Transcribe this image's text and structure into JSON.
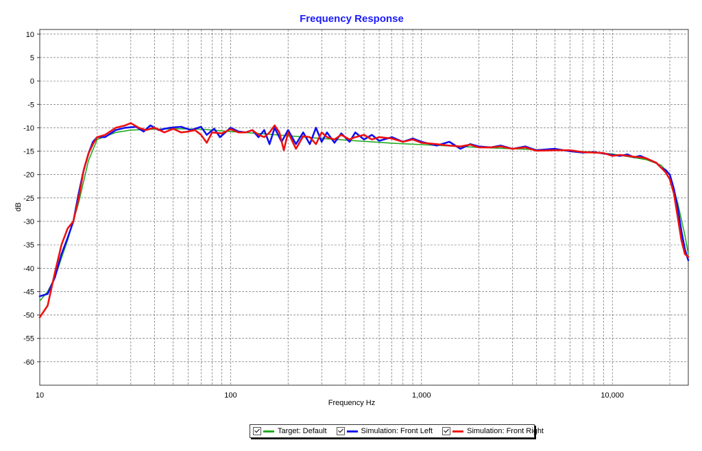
{
  "chart_data": {
    "type": "line",
    "title": "Frequency Response",
    "xlabel": "Frequency Hz",
    "ylabel": "dB",
    "x_scale": "log",
    "xlim": [
      10,
      25000
    ],
    "ylim": [
      -65,
      11
    ],
    "x_tick_labels": [
      {
        "value": 10,
        "label": "10"
      },
      {
        "value": 100,
        "label": "100"
      },
      {
        "value": 1000,
        "label": "1,000"
      },
      {
        "value": 10000,
        "label": "10,000"
      }
    ],
    "y_ticks": [
      10,
      5,
      0,
      -5,
      -10,
      -15,
      -20,
      -25,
      -30,
      -35,
      -40,
      -45,
      -50,
      -55,
      -60
    ],
    "grid": true,
    "legend_position": "bottom-center",
    "colors": {
      "title": "#1a1aff",
      "target": "#22aa22",
      "left": "#1010ee",
      "right": "#ee1010",
      "grid": "#555555"
    },
    "series": [
      {
        "name": "Target: Default",
        "color": "#22aa22",
        "points": [
          [
            10,
            -47
          ],
          [
            11,
            -45
          ],
          [
            12,
            -42
          ],
          [
            14,
            -34
          ],
          [
            16,
            -26
          ],
          [
            18,
            -17
          ],
          [
            20,
            -12.5
          ],
          [
            25,
            -11
          ],
          [
            30,
            -10.5
          ],
          [
            40,
            -10.3
          ],
          [
            50,
            -10.2
          ],
          [
            70,
            -10.3
          ],
          [
            100,
            -10.8
          ],
          [
            150,
            -11.3
          ],
          [
            200,
            -11.7
          ],
          [
            300,
            -12.3
          ],
          [
            500,
            -12.9
          ],
          [
            700,
            -13.3
          ],
          [
            1000,
            -13.6
          ],
          [
            2000,
            -14.2
          ],
          [
            3000,
            -14.5
          ],
          [
            5000,
            -14.8
          ],
          [
            8000,
            -15.2
          ],
          [
            10000,
            -15.6
          ],
          [
            15000,
            -16.8
          ],
          [
            18000,
            -18
          ],
          [
            20000,
            -20
          ],
          [
            22000,
            -26
          ],
          [
            24000,
            -33
          ],
          [
            25000,
            -37
          ]
        ]
      },
      {
        "name": "Simulation: Front Left",
        "color": "#1010ee",
        "points": [
          [
            10,
            -46
          ],
          [
            11,
            -45.5
          ],
          [
            12,
            -42
          ],
          [
            13,
            -37
          ],
          [
            14,
            -33.5
          ],
          [
            15,
            -30
          ],
          [
            16,
            -24
          ],
          [
            17,
            -19
          ],
          [
            18,
            -15.5
          ],
          [
            19,
            -13
          ],
          [
            20,
            -12
          ],
          [
            22,
            -12
          ],
          [
            25,
            -10.5
          ],
          [
            28,
            -10
          ],
          [
            32,
            -9.8
          ],
          [
            35,
            -10.8
          ],
          [
            38,
            -9.5
          ],
          [
            42,
            -10.5
          ],
          [
            48,
            -10
          ],
          [
            55,
            -9.8
          ],
          [
            62,
            -10.5
          ],
          [
            70,
            -9.8
          ],
          [
            75,
            -11.5
          ],
          [
            82,
            -10.2
          ],
          [
            88,
            -12
          ],
          [
            95,
            -10.8
          ],
          [
            100,
            -10
          ],
          [
            110,
            -10.8
          ],
          [
            120,
            -11
          ],
          [
            130,
            -10.5
          ],
          [
            140,
            -12
          ],
          [
            150,
            -10.5
          ],
          [
            160,
            -13.5
          ],
          [
            170,
            -10
          ],
          [
            185,
            -13
          ],
          [
            200,
            -10.5
          ],
          [
            220,
            -13.5
          ],
          [
            240,
            -11
          ],
          [
            260,
            -13.5
          ],
          [
            280,
            -10
          ],
          [
            300,
            -13
          ],
          [
            320,
            -11
          ],
          [
            350,
            -13.2
          ],
          [
            380,
            -11.2
          ],
          [
            420,
            -13
          ],
          [
            450,
            -11
          ],
          [
            500,
            -12.5
          ],
          [
            550,
            -11.5
          ],
          [
            600,
            -12.8
          ],
          [
            700,
            -12
          ],
          [
            800,
            -13
          ],
          [
            900,
            -12.3
          ],
          [
            1000,
            -13
          ],
          [
            1200,
            -13.8
          ],
          [
            1400,
            -13
          ],
          [
            1600,
            -14.5
          ],
          [
            1800,
            -13.5
          ],
          [
            2000,
            -14
          ],
          [
            2300,
            -14.2
          ],
          [
            2600,
            -13.8
          ],
          [
            3000,
            -14.5
          ],
          [
            3500,
            -14
          ],
          [
            4000,
            -14.8
          ],
          [
            5000,
            -14.5
          ],
          [
            6000,
            -15
          ],
          [
            7000,
            -15.3
          ],
          [
            8000,
            -15.2
          ],
          [
            9000,
            -15.5
          ],
          [
            10000,
            -15.8
          ],
          [
            11000,
            -16
          ],
          [
            12000,
            -15.7
          ],
          [
            13000,
            -16.3
          ],
          [
            14000,
            -16
          ],
          [
            15000,
            -16.5
          ],
          [
            17000,
            -17.5
          ],
          [
            18000,
            -18.5
          ],
          [
            19000,
            -19
          ],
          [
            20000,
            -20
          ],
          [
            21000,
            -23
          ],
          [
            22000,
            -27
          ],
          [
            23000,
            -32
          ],
          [
            24000,
            -36
          ],
          [
            25000,
            -38.3
          ]
        ]
      },
      {
        "name": "Simulation: Front Right",
        "color": "#ee1010",
        "points": [
          [
            10,
            -50.5
          ],
          [
            11,
            -48
          ],
          [
            12,
            -41
          ],
          [
            13,
            -35
          ],
          [
            14,
            -31.5
          ],
          [
            15,
            -30
          ],
          [
            16,
            -25
          ],
          [
            17,
            -19
          ],
          [
            18,
            -15.5
          ],
          [
            19,
            -13.5
          ],
          [
            20,
            -12
          ],
          [
            22,
            -11.5
          ],
          [
            25,
            -10
          ],
          [
            28,
            -9.5
          ],
          [
            30,
            -9
          ],
          [
            33,
            -10
          ],
          [
            36,
            -10.5
          ],
          [
            40,
            -10
          ],
          [
            45,
            -11
          ],
          [
            50,
            -10.2
          ],
          [
            55,
            -11
          ],
          [
            60,
            -10.8
          ],
          [
            65,
            -10.5
          ],
          [
            70,
            -11.5
          ],
          [
            75,
            -13.2
          ],
          [
            80,
            -11
          ],
          [
            90,
            -11.2
          ],
          [
            100,
            -10.3
          ],
          [
            110,
            -11
          ],
          [
            120,
            -11
          ],
          [
            130,
            -10.5
          ],
          [
            140,
            -11.5
          ],
          [
            150,
            -12
          ],
          [
            160,
            -11
          ],
          [
            170,
            -9.5
          ],
          [
            180,
            -11
          ],
          [
            190,
            -14.8
          ],
          [
            200,
            -11
          ],
          [
            220,
            -14.5
          ],
          [
            240,
            -11.8
          ],
          [
            260,
            -12
          ],
          [
            280,
            -13.5
          ],
          [
            300,
            -11
          ],
          [
            320,
            -12
          ],
          [
            350,
            -12.5
          ],
          [
            380,
            -11.5
          ],
          [
            420,
            -12.5
          ],
          [
            450,
            -12
          ],
          [
            500,
            -11.5
          ],
          [
            550,
            -12.5
          ],
          [
            600,
            -12
          ],
          [
            700,
            -12.3
          ],
          [
            800,
            -13
          ],
          [
            900,
            -12.5
          ],
          [
            1000,
            -13.2
          ],
          [
            1200,
            -13.5
          ],
          [
            1400,
            -13.8
          ],
          [
            1600,
            -14
          ],
          [
            1800,
            -13.6
          ],
          [
            2000,
            -14.2
          ],
          [
            2300,
            -14.2
          ],
          [
            2600,
            -14
          ],
          [
            3000,
            -14.5
          ],
          [
            3500,
            -14.2
          ],
          [
            4000,
            -14.9
          ],
          [
            5000,
            -14.8
          ],
          [
            6000,
            -14.8
          ],
          [
            7000,
            -15.2
          ],
          [
            8000,
            -15.3
          ],
          [
            9000,
            -15.4
          ],
          [
            10000,
            -16
          ],
          [
            11000,
            -15.8
          ],
          [
            12000,
            -16
          ],
          [
            13000,
            -16.2
          ],
          [
            14000,
            -16.3
          ],
          [
            15000,
            -16.5
          ],
          [
            17000,
            -17.5
          ],
          [
            18000,
            -18.5
          ],
          [
            19000,
            -19.5
          ],
          [
            20000,
            -21
          ],
          [
            21000,
            -24
          ],
          [
            22000,
            -29
          ],
          [
            23000,
            -34
          ],
          [
            24000,
            -37
          ],
          [
            25000,
            -37.6
          ]
        ]
      }
    ]
  }
}
